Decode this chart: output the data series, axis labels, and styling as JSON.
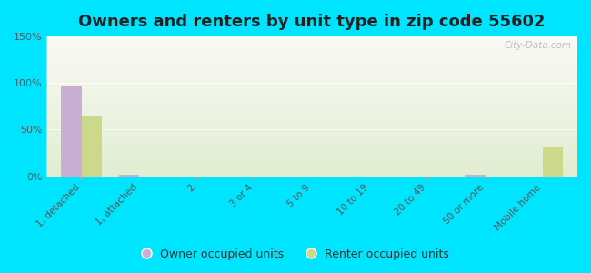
{
  "title": "Owners and renters by unit type in zip code 55602",
  "categories": [
    "1, detached",
    "1, attached",
    "2",
    "3 or 4",
    "5 to 9",
    "10 to 19",
    "20 to 49",
    "50 or more",
    "Mobile home"
  ],
  "owner_values": [
    96,
    2,
    0,
    0,
    0,
    0,
    0,
    2,
    0
  ],
  "renter_values": [
    65,
    0,
    0,
    0,
    0,
    0,
    0,
    0,
    31
  ],
  "owner_color": "#c9afd4",
  "renter_color": "#ccd98a",
  "ylim": [
    0,
    150
  ],
  "yticks": [
    0,
    50,
    100,
    150
  ],
  "ytick_labels": [
    "0%",
    "50%",
    "100%",
    "150%"
  ],
  "outer_bg": "#00e5ff",
  "bar_width": 0.35,
  "title_fontsize": 13,
  "watermark": "City-Data.com"
}
